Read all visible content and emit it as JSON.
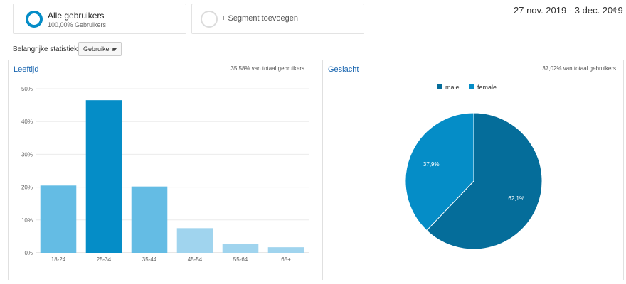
{
  "segments": {
    "all": {
      "title": "Alle gebruikers",
      "subtitle": "100,00% Gebruikers"
    },
    "add": {
      "label": "+ Segment toevoegen"
    }
  },
  "date_range": "27 nov. 2019 - 3 dec. 2019",
  "metric": {
    "label": "Belangrijke statistiek:",
    "selected": "Gebruikers"
  },
  "panels": {
    "age": {
      "title": "Leeftijd",
      "note": "35,58% van totaal gebruikers"
    },
    "gender": {
      "title": "Geslacht",
      "note": "37,02% van totaal gebruikers"
    }
  },
  "colors": {
    "accent": "#058dc7",
    "bar_shades": [
      "#64bce4",
      "#058dc7",
      "#64bce4",
      "#a0d4ee",
      "#a0d4ee",
      "#a0d4ee"
    ],
    "male": "#056d9a",
    "female": "#058dc7"
  },
  "chart_data": [
    {
      "type": "bar",
      "title": "Leeftijd",
      "categories": [
        "18-24",
        "25-34",
        "35-44",
        "45-54",
        "55-64",
        "65+"
      ],
      "values": [
        20.5,
        46.5,
        20.2,
        7.5,
        2.8,
        1.7
      ],
      "yunit": "%",
      "ylim": [
        0,
        50
      ],
      "yticks": [
        0,
        10,
        20,
        30,
        40,
        50
      ],
      "ytick_labels": [
        "0%",
        "10%",
        "20%",
        "30%",
        "40%",
        "50%"
      ],
      "grid": true
    },
    {
      "type": "pie",
      "title": "Geslacht",
      "categories": [
        "male",
        "female"
      ],
      "values": [
        62.1,
        37.9
      ],
      "value_labels": [
        "62,1%",
        "37,9%"
      ],
      "legend": "top"
    }
  ]
}
